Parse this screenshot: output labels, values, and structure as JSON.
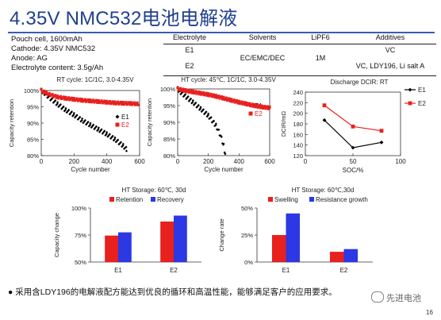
{
  "title": "4.35V NMC532电池电解液",
  "cell_info": [
    "Pouch cell, 1600mAh",
    "Cathode: 4.35V NMC532",
    "Anode: AG",
    "Electrolyte content: 3.5g/Ah"
  ],
  "electrolyte_table": {
    "headers": [
      "Electrolyte",
      "Solvents",
      "LiPF6",
      "Additives"
    ],
    "rows": [
      {
        "electrolyte": "E1",
        "additives": "VC"
      },
      {
        "electrolyte": "E2",
        "additives": "VC, LDY196, Li salt A"
      }
    ],
    "solvents": "EC/EMC/DEC",
    "lipf6": "1M"
  },
  "colors": {
    "e1": "#000000",
    "e2": "#e8201e",
    "retention": "#e8201e",
    "recovery": "#2b38e3",
    "swelling": "#e8201e",
    "resistance": "#2b38e3",
    "title": "#1f3f8e"
  },
  "chart_data": [
    {
      "type": "scatter",
      "title": "RT cycle: 1C/1C, 3.0-4.35V",
      "xlabel": "Cycle number",
      "ylabel": "Capacity retention",
      "xlim": [
        0,
        600
      ],
      "ylim": [
        80,
        100
      ],
      "xticks": [
        "0",
        "200",
        "400",
        "600"
      ],
      "yticks": [
        "80%",
        "85%",
        "90%",
        "95%",
        "100%"
      ],
      "legend": "right",
      "series": [
        {
          "name": "E1",
          "x": [
            0,
            20,
            50,
            100,
            150,
            200,
            250,
            300,
            350,
            400,
            450,
            500,
            520
          ],
          "y": [
            100,
            99.2,
            97.8,
            95.8,
            94.0,
            92.5,
            90.8,
            89.4,
            88.0,
            86.6,
            85.0,
            83.0,
            82.0
          ]
        },
        {
          "name": "E2",
          "x": [
            0,
            20,
            50,
            100,
            150,
            200,
            250,
            300,
            350,
            400,
            450,
            500,
            550,
            590
          ],
          "y": [
            100,
            99.5,
            98.8,
            98.0,
            97.6,
            97.3,
            97.0,
            96.8,
            96.6,
            96.4,
            96.2,
            96.1,
            96.0,
            95.9
          ]
        }
      ]
    },
    {
      "type": "scatter",
      "title": "HT cycle: 45℃, 1C/1C, 3.0-4.35V",
      "xlabel": "Cycle number",
      "ylabel": "Capacity retention",
      "xlim": [
        0,
        600
      ],
      "ylim": [
        80,
        100
      ],
      "xticks": [
        "0",
        "200",
        "400",
        "600"
      ],
      "yticks": [
        "80%",
        "85%",
        "90%",
        "95%",
        "100%"
      ],
      "legend": "right",
      "series": [
        {
          "name": "E1",
          "x": [
            0,
            20,
            50,
            100,
            150,
            200,
            250,
            280,
            300,
            310
          ],
          "y": [
            100,
            99.0,
            97.8,
            96.0,
            94.0,
            92.0,
            89.0,
            86.0,
            83.0,
            80.5
          ]
        },
        {
          "name": "E2",
          "x": [
            0,
            50,
            100,
            150,
            200,
            250,
            300,
            350,
            400,
            450,
            500,
            550,
            600
          ],
          "y": [
            100,
            99.5,
            99.1,
            98.7,
            98.3,
            97.8,
            97.2,
            96.6,
            96.0,
            95.5,
            95.0,
            94.6,
            94.3
          ]
        }
      ]
    },
    {
      "type": "line",
      "title": "Discharge DCIR: RT",
      "xlabel": "SOC/%",
      "ylabel": "DCIR/mΩ",
      "xlim": [
        0,
        100
      ],
      "ylim": [
        120,
        240
      ],
      "xticks": [
        "0",
        "50",
        "100"
      ],
      "yticks": [
        "120",
        "140",
        "160",
        "180",
        "200",
        "220",
        "240"
      ],
      "legend": "right",
      "series": [
        {
          "name": "E1",
          "x": [
            20,
            50,
            80
          ],
          "y": [
            187,
            135,
            145
          ]
        },
        {
          "name": "E2",
          "x": [
            20,
            50,
            80
          ],
          "y": [
            215,
            175,
            167
          ]
        }
      ]
    },
    {
      "type": "bar",
      "title": "HT Storage: 60℃, 30d",
      "ylabel": "Capacity change",
      "categories": [
        "E1",
        "E2"
      ],
      "ylim": [
        50,
        100
      ],
      "yticks": [
        "50%",
        "75%",
        "100%"
      ],
      "legend": "top",
      "series": [
        {
          "name": "Retention",
          "values": [
            74.5,
            87.5
          ]
        },
        {
          "name": "Recovery",
          "values": [
            77.5,
            93
          ]
        }
      ]
    },
    {
      "type": "bar",
      "title": "HT Storage: 60℃,30d",
      "ylabel": "Change rate",
      "categories": [
        "E1",
        "E2"
      ],
      "ylim": [
        0,
        50
      ],
      "yticks": [
        "0%",
        "25%",
        "50%"
      ],
      "legend": "top",
      "series": [
        {
          "name": "Swelling",
          "values": [
            25,
            9.5
          ]
        },
        {
          "name": "Resistance growth",
          "values": [
            45,
            12
          ]
        }
      ]
    }
  ],
  "footnote": "采用含LDY196的电解液配方能达到优良的循环和高温性能，能够满足客户的应用要求。",
  "watermark": "先进电池",
  "page_number": "16"
}
